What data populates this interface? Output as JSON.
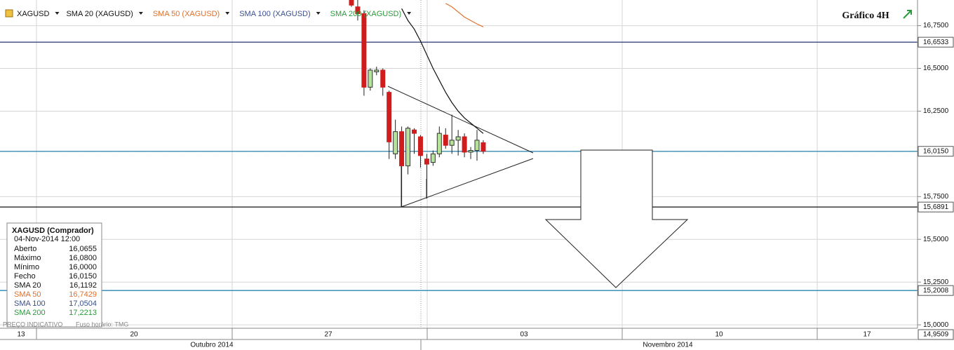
{
  "chart_data": {
    "type": "candlestick",
    "title": "Gráfico 4H",
    "symbol": "XAGUSD",
    "up_color": "#b6e39a",
    "down_color": "#d01c1c",
    "open": [
      16.9,
      16.86,
      16.82,
      16.39,
      16.48,
      16.49,
      16.36,
      16.0,
      16.13,
      15.93,
      16.14,
      16.1,
      15.97,
      15.95,
      16.0,
      16.11,
      16.05,
      16.08,
      16.1,
      16.01,
      16.02,
      16.0655
    ],
    "high": [
      16.9,
      16.9,
      16.84,
      16.5,
      16.51,
      16.5,
      16.37,
      16.2,
      16.16,
      16.16,
      16.15,
      16.11,
      16.0,
      16.02,
      16.16,
      16.15,
      16.23,
      16.14,
      16.12,
      16.04,
      16.14,
      16.08
    ],
    "low": [
      16.86,
      16.78,
      16.34,
      16.37,
      16.46,
      16.34,
      15.97,
      15.97,
      15.69,
      15.88,
      16.0,
      15.92,
      15.74,
      15.93,
      15.98,
      16.03,
      16.0,
      15.99,
      15.98,
      15.97,
      15.96,
      16.0
    ],
    "close": [
      16.87,
      16.82,
      16.39,
      16.49,
      16.49,
      16.39,
      16.07,
      16.13,
      15.93,
      16.15,
      16.12,
      15.99,
      15.94,
      16.0,
      16.12,
      16.05,
      16.08,
      16.1,
      16.01,
      16.02,
      16.08,
      16.015
    ],
    "series": [
      {
        "name": "SMA 20 (XAGUSD)",
        "color": "#111111",
        "values": [
          null,
          null,
          null,
          null,
          null,
          null,
          null,
          null,
          16.85,
          16.78,
          16.73,
          16.66,
          16.58,
          16.5,
          16.43,
          16.36,
          16.3,
          16.25,
          16.21,
          16.18,
          16.15,
          16.1192
        ]
      },
      {
        "name": "SMA 50 (XAGUSD)",
        "color": "#e0702a",
        "values": [
          null,
          null,
          null,
          null,
          null,
          null,
          null,
          null,
          null,
          null,
          null,
          null,
          null,
          null,
          null,
          16.88,
          16.86,
          16.83,
          16.8,
          16.78,
          16.76,
          16.7429
        ]
      },
      {
        "name": "SMA 100 (XAGUSD)",
        "color": "#3a4f8a"
      },
      {
        "name": "SMA 200 (XAGUSD)",
        "color": "#2a9a3a"
      }
    ],
    "ylim": [
      14.98,
      16.9
    ],
    "yticks": [
      {
        "value": 15.0,
        "label": "15,0000"
      },
      {
        "value": 15.25,
        "label": "15,2500"
      },
      {
        "value": 15.5,
        "label": "15,5000"
      },
      {
        "value": 15.75,
        "label": "15,7500"
      },
      {
        "value": 16.25,
        "label": "16,2500"
      },
      {
        "value": 16.5,
        "label": "16,5000"
      },
      {
        "value": 16.75,
        "label": "16,7500"
      }
    ],
    "levels": [
      {
        "value": 16.6533,
        "label": "16,6533",
        "color": "#22366e"
      },
      {
        "value": 16.015,
        "label": "16,0150",
        "color": "#2a86b0"
      },
      {
        "value": 15.6891,
        "label": "15,6891",
        "color": "#111111"
      },
      {
        "value": 15.2008,
        "label": "15,2008",
        "color": "#2a86b0"
      }
    ],
    "scale_box": {
      "value": 14.9509,
      "label": "14,9509"
    },
    "x_labels": [
      "13",
      "20",
      "27",
      "03",
      "10",
      "17"
    ],
    "months": [
      "Outubro 2014",
      "Novembro 2014"
    ],
    "info": {
      "title": "XAGUSD (Comprador)",
      "date": "04-Nov-2014 12:00",
      "rows": [
        {
          "label": "Aberto",
          "value": "16,0655",
          "color": "#111111"
        },
        {
          "label": "Máximo",
          "value": "16,0800",
          "color": "#111111"
        },
        {
          "label": "Mínimo",
          "value": "16,0000",
          "color": "#111111"
        },
        {
          "label": "Fecho",
          "value": "16,0150",
          "color": "#111111"
        },
        {
          "label": "SMA 20",
          "value": "16,1192",
          "color": "#111111"
        },
        {
          "label": "SMA 50",
          "value": "16,7429",
          "color": "#e0702a"
        },
        {
          "label": "SMA 100",
          "value": "17,0504",
          "color": "#3a4f8a"
        },
        {
          "label": "SMA 200",
          "value": "17,2213",
          "color": "#2a9a3a"
        }
      ]
    },
    "footer": [
      "PREÇO INDICATIVO",
      "Fuso horário: TMG"
    ]
  }
}
